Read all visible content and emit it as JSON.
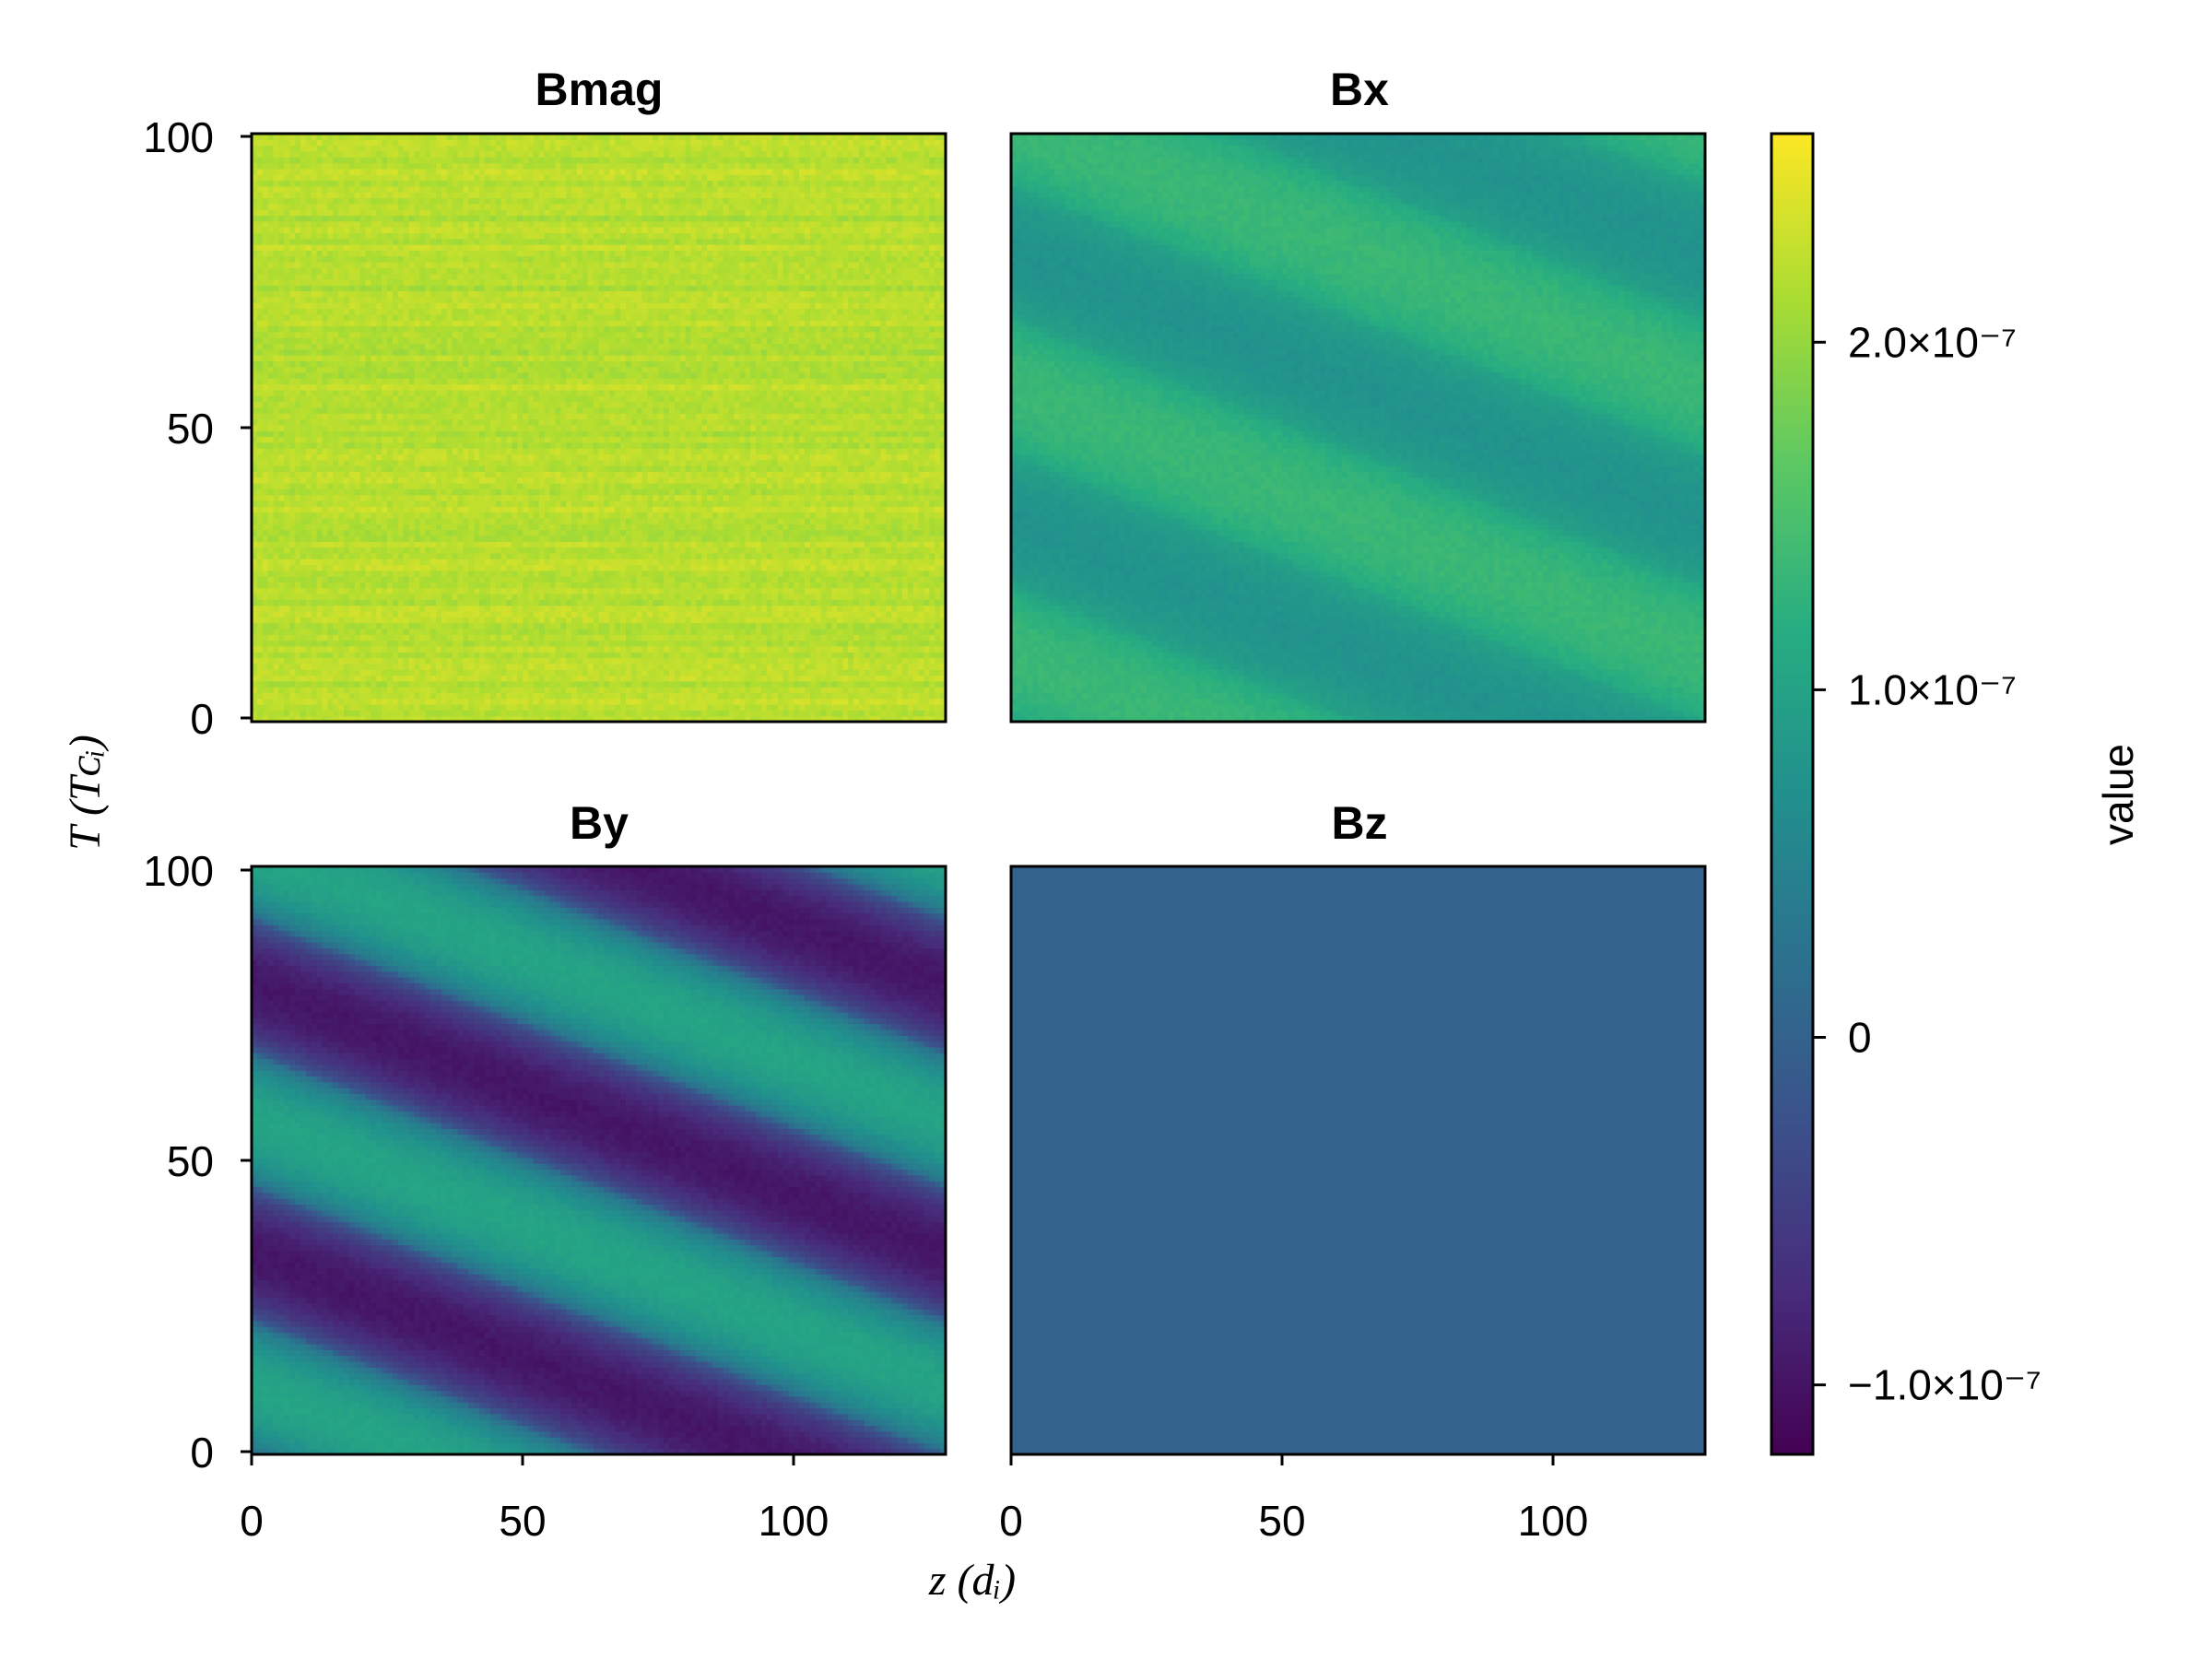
{
  "chart_data": {
    "type": "heatmap",
    "layout": "2x2",
    "colormap": "viridis",
    "grid": false,
    "x_axis": {
      "label": "z (d_i)",
      "label_display": "z (dᵢ)",
      "range": [
        0,
        128
      ],
      "ticks": [
        0,
        50,
        100
      ],
      "tick_labels": [
        "0",
        "50",
        "100"
      ]
    },
    "y_axis": {
      "label": "T (T_ci)",
      "label_display": "T (Tᴄᵢ)",
      "range": [
        0,
        101
      ],
      "ticks": [
        0,
        50,
        100
      ],
      "tick_labels": [
        "0",
        "50",
        "100"
      ]
    },
    "colorbar": {
      "label": "value",
      "range": [
        -1.2e-07,
        2.6e-07
      ],
      "ticks": [
        -1e-07,
        0,
        1e-07,
        2e-07
      ],
      "tick_labels": [
        "−1.0×10⁻⁷",
        "0",
        "1.0×10⁻⁷",
        "2.0×10⁻⁷"
      ],
      "placement": "right"
    },
    "panels": [
      {
        "title": "Bmag",
        "pattern": "noise",
        "mean": 2.2e-07,
        "amplitude": 3e-08
      },
      {
        "title": "Bx",
        "pattern": "wave",
        "mean": 1.05e-07,
        "amplitude": 3e-08,
        "wavelength_z": 128,
        "wave_slope_T_per_z": -0.36,
        "noise": 5e-09
      },
      {
        "title": "By",
        "pattern": "wave",
        "mean": 3e-09,
        "amplitude": 1e-07,
        "wavelength_z": 128,
        "wave_slope_T_per_z": -0.36,
        "noise": 5e-09
      },
      {
        "title": "Bz",
        "pattern": "uniform",
        "mean": 0.0
      }
    ]
  }
}
